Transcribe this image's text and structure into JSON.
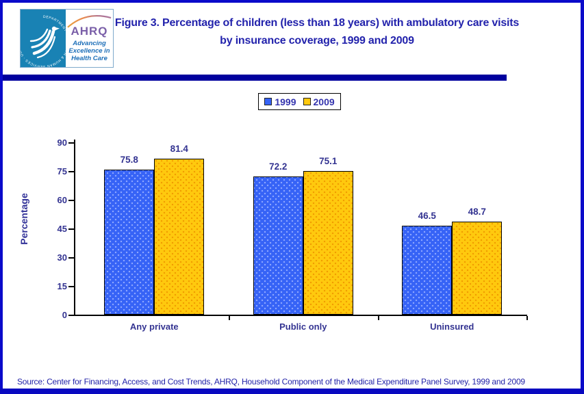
{
  "logo": {
    "seal_text": "DEPARTMENT OF HEALTH & HUMAN SERVICES · USA",
    "ahrq": "AHRQ",
    "tagline_line1": "Advancing",
    "tagline_line2": "Excellence in",
    "tagline_line3": "Health Care"
  },
  "title": "Figure 3. Percentage of children (less than 18 years) with ambulatory care visits by insurance coverage, 1999 and 2009",
  "chart_data": {
    "type": "bar",
    "categories": [
      "Any private",
      "Public only",
      "Uninsured"
    ],
    "series": [
      {
        "name": "1999",
        "color": "#3663F6",
        "values": [
          75.8,
          72.2,
          46.5
        ]
      },
      {
        "name": "2009",
        "color": "#FFC90E",
        "values": [
          81.4,
          75.1,
          48.7
        ]
      }
    ],
    "title": "",
    "xlabel": "",
    "ylabel": "Percentage",
    "ylim": [
      0,
      90
    ],
    "yticks": [
      0,
      15,
      30,
      45,
      60,
      75,
      90
    ],
    "grid": false,
    "legend_position": "top-center"
  },
  "source": "Source: Center for Financing, Access, and Cost Trends, AHRQ, Household Component of the Medical Expenditure Panel Survey, 1999 and 2009",
  "colors": {
    "frame_border": "#0A0ACA",
    "header_divider": "#00009E",
    "footer_bar": "#0808C0",
    "title_text": "#2222AC",
    "chart_text": "#333391",
    "series_1999": "#3663F6",
    "series_2009": "#FFC90E",
    "seal_background": "#1982B4",
    "ahrq_purple": "#7A5FA8",
    "tagline_blue": "#1D6FB8"
  }
}
